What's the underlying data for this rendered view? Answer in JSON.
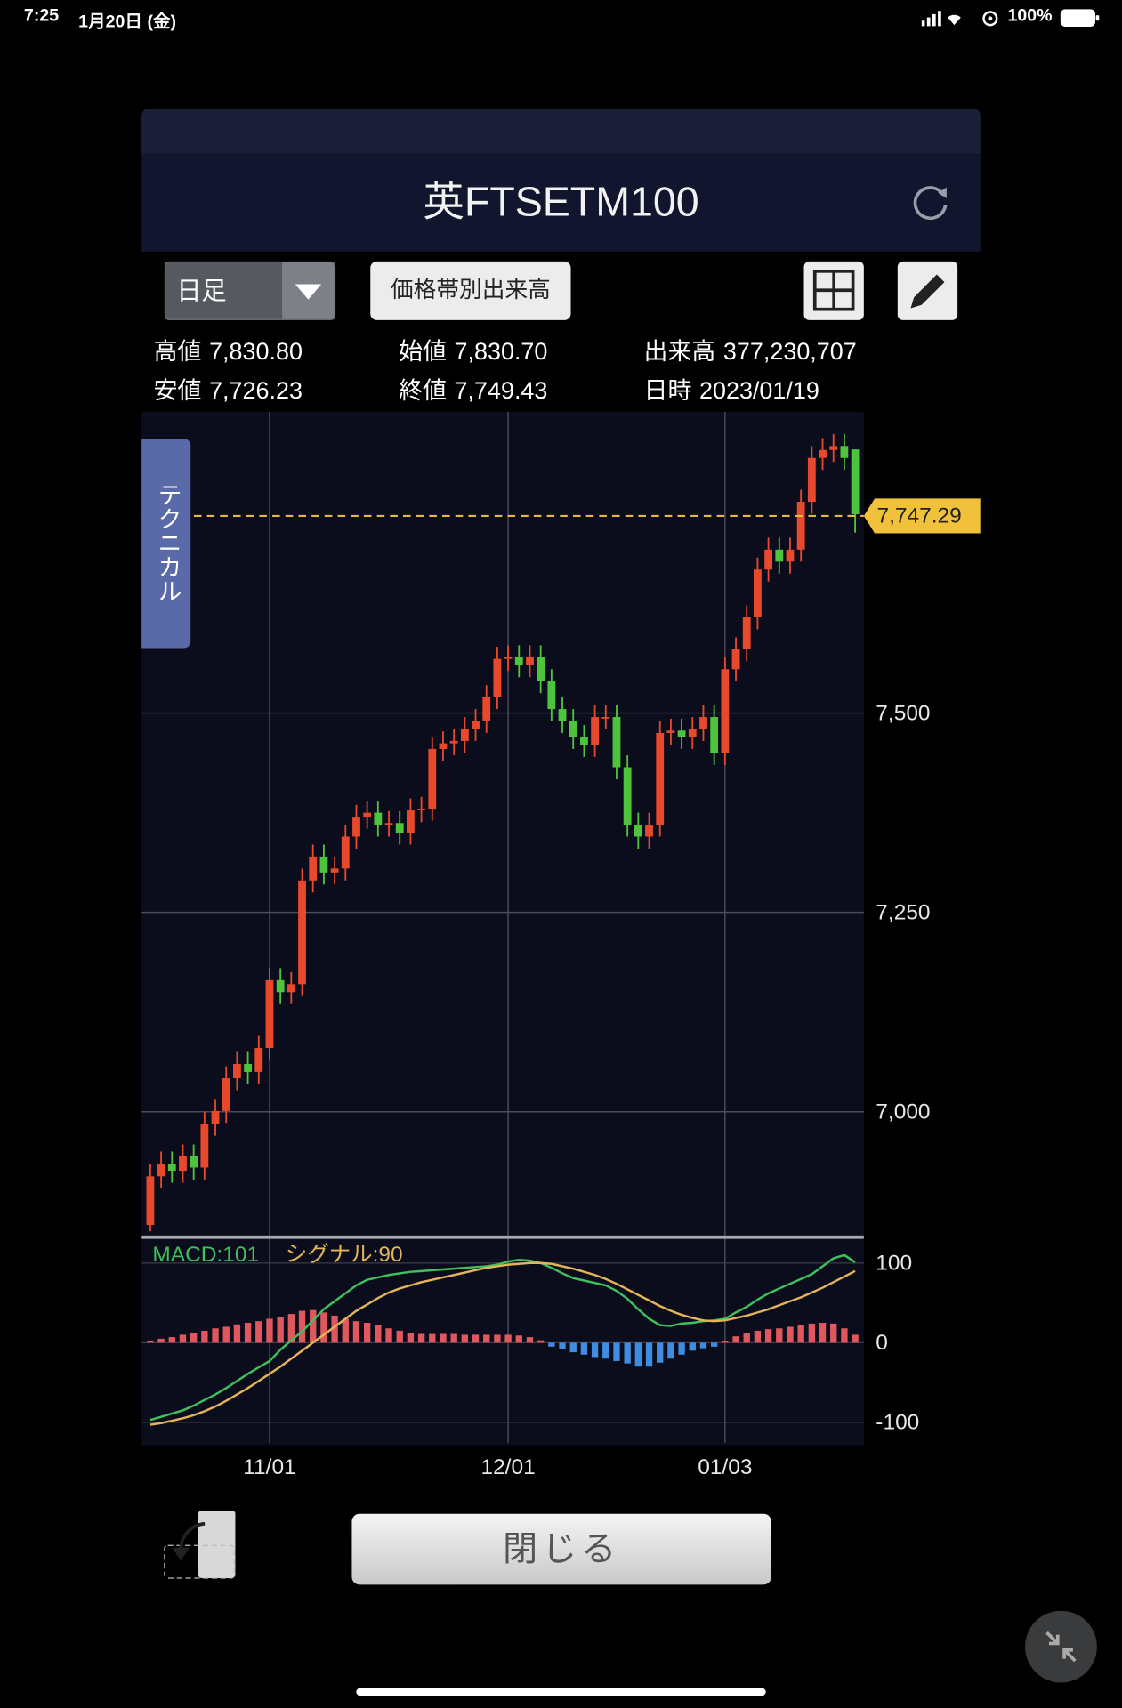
{
  "status_bar": {
    "time": "7:25",
    "date": "1月20日 (金)",
    "battery": "100%"
  },
  "header": {
    "title": "英FTSETM100"
  },
  "toolbar": {
    "period": "日足",
    "volume_button": "価格帯別出来高"
  },
  "quote": {
    "rows": [
      [
        {
          "label": "高値",
          "value": "7,830.80"
        },
        {
          "label": "始値",
          "value": "7,830.70"
        },
        {
          "label": "出来高",
          "value": "377,230,707"
        }
      ],
      [
        {
          "label": "安値",
          "value": "7,726.23"
        },
        {
          "label": "終値",
          "value": "7,749.43"
        },
        {
          "label": "日時",
          "value": "2023/01/19"
        }
      ]
    ]
  },
  "side_tab": "テクニカル",
  "chart_data": [
    {
      "type": "candlestick",
      "open": [
        6858,
        6919,
        6935,
        6926,
        6944,
        6930,
        6985,
        7001,
        7042,
        7060,
        7050,
        7080,
        7165,
        7150,
        7160,
        7290,
        7320,
        7300,
        7305,
        7345,
        7370,
        7375,
        7360,
        7362,
        7350,
        7378,
        7380,
        7455,
        7462,
        7465,
        7480,
        7490,
        7520,
        7568,
        7570,
        7560,
        7570,
        7540,
        7505,
        7490,
        7470,
        7460,
        7495,
        7495,
        7432,
        7360,
        7345,
        7360,
        7475,
        7478,
        7470,
        7480,
        7495,
        7450,
        7555,
        7580,
        7620,
        7680,
        7705,
        7690,
        7705,
        7765,
        7820,
        7830,
        7835,
        7830.7
      ],
      "high": [
        6934,
        6950,
        6950,
        6959,
        6959,
        7000,
        7016,
        7057,
        7075,
        7075,
        7095,
        7180,
        7180,
        7175,
        7305,
        7335,
        7335,
        7320,
        7360,
        7385,
        7390,
        7390,
        7377,
        7377,
        7393,
        7395,
        7470,
        7477,
        7480,
        7495,
        7505,
        7535,
        7583,
        7585,
        7585,
        7585,
        7585,
        7555,
        7520,
        7505,
        7485,
        7510,
        7510,
        7510,
        7447,
        7375,
        7375,
        7490,
        7493,
        7493,
        7495,
        7510,
        7510,
        7570,
        7595,
        7635,
        7695,
        7720,
        7720,
        7720,
        7780,
        7835,
        7845,
        7850,
        7850,
        7830.8
      ],
      "low": [
        6850,
        6904,
        6911,
        6911,
        6915,
        6915,
        6970,
        6986,
        7027,
        7035,
        7035,
        7065,
        7135,
        7135,
        7145,
        7275,
        7285,
        7285,
        7290,
        7330,
        7355,
        7345,
        7345,
        7335,
        7335,
        7363,
        7365,
        7440,
        7447,
        7450,
        7465,
        7475,
        7505,
        7553,
        7545,
        7545,
        7525,
        7490,
        7475,
        7455,
        7445,
        7445,
        7480,
        7417,
        7345,
        7330,
        7330,
        7345,
        7460,
        7455,
        7455,
        7465,
        7435,
        7435,
        7540,
        7565,
        7605,
        7665,
        7675,
        7675,
        7690,
        7750,
        7805,
        7815,
        7805,
        7726.23
      ],
      "close": [
        6919,
        6935,
        6926,
        6944,
        6930,
        6985,
        7001,
        7042,
        7060,
        7050,
        7080,
        7165,
        7150,
        7160,
        7290,
        7320,
        7300,
        7305,
        7345,
        7370,
        7375,
        7360,
        7362,
        7350,
        7378,
        7380,
        7455,
        7462,
        7465,
        7480,
        7490,
        7520,
        7568,
        7570,
        7560,
        7570,
        7540,
        7505,
        7490,
        7470,
        7460,
        7495,
        7495,
        7432,
        7360,
        7345,
        7360,
        7475,
        7478,
        7470,
        7480,
        7495,
        7450,
        7555,
        7580,
        7620,
        7680,
        7705,
        7690,
        7705,
        7765,
        7820,
        7830,
        7835,
        7820,
        7749.43
      ],
      "xlim": [
        -0.8,
        65.8
      ],
      "xticks": [
        {
          "value": 11,
          "label": "11/01"
        },
        {
          "value": 33,
          "label": "12/01"
        },
        {
          "value": 53,
          "label": "01/03"
        }
      ],
      "ylim": [
        6844,
        7878
      ],
      "yticks": [
        {
          "value": 7000,
          "label": "7,000"
        },
        {
          "value": 7250,
          "label": "7,250"
        },
        {
          "value": 7500,
          "label": "7,500"
        }
      ],
      "grid": true,
      "up_color": "#e8492c",
      "down_color": "#4ec43d",
      "current_price": {
        "value": 7747.29,
        "label": "7,747.29"
      }
    },
    {
      "type": "macd",
      "legend": [
        "MACD:101",
        "シグナル:90"
      ],
      "series": [
        {
          "color": "#3fc05c",
          "values": [
            -97,
            -93,
            -89,
            -85,
            -79,
            -72,
            -65,
            -57,
            -48,
            -39,
            -31,
            -23,
            -9,
            3,
            14,
            28,
            42,
            52,
            62,
            72,
            79,
            82,
            85,
            87,
            89,
            90,
            91,
            92,
            93,
            94,
            95,
            96,
            98,
            102,
            104,
            103,
            100,
            94,
            87,
            81,
            78,
            75,
            72,
            65,
            55,
            42,
            30,
            22,
            21,
            24,
            25,
            27,
            28,
            30,
            38,
            45,
            54,
            62,
            68,
            74,
            80,
            86,
            96,
            106,
            110,
            101
          ]
        },
        {
          "color": "#e3b458",
          "values": [
            -103,
            -101,
            -98,
            -95,
            -91,
            -86,
            -80,
            -73,
            -65,
            -57,
            -48,
            -39,
            -30,
            -20,
            -10,
            0,
            10,
            20,
            30,
            40,
            48,
            56,
            63,
            68,
            72,
            76,
            79,
            82,
            85,
            88,
            91,
            94,
            96,
            98,
            99,
            100,
            100,
            99,
            96,
            93,
            89,
            85,
            80,
            74,
            67,
            60,
            53,
            46,
            40,
            35,
            31,
            28,
            27,
            28,
            31,
            34,
            38,
            42,
            47,
            52,
            57,
            63,
            69,
            76,
            83,
            90
          ]
        }
      ],
      "histogram": {
        "up_color": "#e0585e",
        "down_color": "#3f8de0",
        "values": [
          2,
          5,
          7,
          10,
          12,
          15,
          18,
          20,
          23,
          25,
          27,
          30,
          32,
          36,
          40,
          41,
          38,
          34,
          30,
          27,
          25,
          22,
          18,
          15,
          12,
          11,
          11,
          11,
          11,
          10,
          10,
          10,
          10,
          10,
          9,
          7,
          3,
          -5,
          -8,
          -12,
          -15,
          -18,
          -20,
          -23,
          -26,
          -30,
          -30,
          -25,
          -20,
          -15,
          -10,
          -7,
          -5,
          2,
          8,
          12,
          15,
          17,
          18,
          20,
          22,
          24,
          25,
          24,
          18,
          10
        ]
      },
      "xlim": [
        -0.8,
        65.8
      ],
      "ylim": [
        -126,
        127
      ],
      "yticks": [
        100,
        0,
        -100
      ],
      "grid": true
    }
  ],
  "close_button": "閉じる"
}
